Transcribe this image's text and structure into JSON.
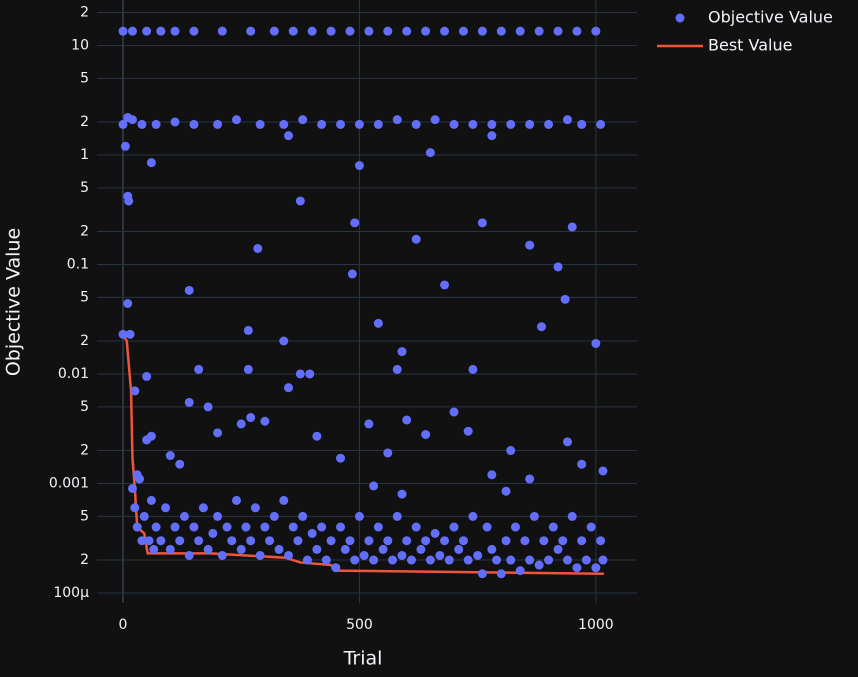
{
  "chart_data": {
    "type": "scatter",
    "x_label": "Trial",
    "y_label": "Objective Value",
    "log_y": true,
    "grid": true,
    "legend": "top-right",
    "xlim": [
      -55,
      1087
    ],
    "ylim": [
      8.1e-05,
      26
    ],
    "xticks": [
      0,
      500,
      1000
    ],
    "yticks": [
      {
        "value": 0.0001,
        "label": "100μ"
      },
      {
        "value": 0.0002,
        "label": "2"
      },
      {
        "value": 0.0005,
        "label": "5"
      },
      0.001,
      {
        "value": 0.002,
        "label": "2"
      },
      {
        "value": 0.005,
        "label": "5"
      },
      0.01,
      {
        "value": 0.02,
        "label": "2"
      },
      {
        "value": 0.05,
        "label": "5"
      },
      0.1,
      {
        "value": 0.2,
        "label": "2"
      },
      {
        "value": 0.5,
        "label": "5"
      },
      1,
      {
        "value": 2,
        "label": "2"
      },
      {
        "value": 5,
        "label": "5"
      },
      10,
      {
        "value": 20,
        "label": "2"
      }
    ],
    "series": [
      {
        "name": "Objective Value",
        "color": "#636efa",
        "mode": "markers",
        "x": [
          0,
          20,
          50,
          80,
          110,
          150,
          210,
          270,
          320,
          360,
          400,
          440,
          480,
          520,
          560,
          600,
          640,
          680,
          720,
          760,
          800,
          840,
          880,
          920,
          960,
          1000,
          0,
          10,
          20,
          40,
          70,
          110,
          150,
          200,
          240,
          290,
          340,
          380,
          420,
          460,
          500,
          540,
          580,
          620,
          660,
          700,
          740,
          780,
          820,
          860,
          900,
          940,
          970,
          1010,
          5,
          10,
          12,
          60,
          350,
          780,
          140,
          285,
          375,
          500,
          490,
          485,
          620,
          650,
          680,
          760,
          860,
          920,
          935,
          950,
          885,
          1000,
          540,
          590,
          340,
          265,
          10,
          15,
          0,
          50,
          160,
          265,
          375,
          395,
          740,
          580,
          25,
          140,
          180,
          270,
          350,
          410,
          30,
          50,
          60,
          100,
          120,
          200,
          250,
          300,
          460,
          520,
          560,
          600,
          640,
          700,
          730,
          780,
          820,
          860,
          940,
          970,
          1015,
          530,
          590,
          810,
          20,
          25,
          30,
          35,
          40,
          45,
          55,
          60,
          65,
          70,
          80,
          90,
          100,
          110,
          120,
          130,
          140,
          150,
          160,
          170,
          180,
          190,
          200,
          210,
          220,
          230,
          240,
          250,
          260,
          270,
          280,
          290,
          300,
          310,
          320,
          330,
          340,
          350,
          360,
          370,
          380,
          390,
          400,
          410,
          420,
          430,
          440,
          450,
          460,
          470,
          480,
          490,
          500,
          510,
          520,
          530,
          540,
          550,
          560,
          570,
          580,
          590,
          600,
          610,
          620,
          630,
          640,
          650,
          660,
          670,
          680,
          690,
          700,
          710,
          720,
          730,
          740,
          750,
          760,
          770,
          780,
          790,
          800,
          810,
          820,
          830,
          840,
          850,
          860,
          870,
          880,
          890,
          900,
          910,
          920,
          930,
          940,
          950,
          960,
          970,
          980,
          990,
          1000,
          1010,
          1015
        ],
        "values": [
          13.5,
          13.5,
          13.5,
          13.5,
          13.5,
          13.5,
          13.5,
          13.5,
          13.5,
          13.5,
          13.5,
          13.5,
          13.5,
          13.5,
          13.5,
          13.5,
          13.5,
          13.5,
          13.5,
          13.5,
          13.5,
          13.5,
          13.5,
          13.5,
          13.5,
          13.5,
          1.9,
          2.2,
          2.1,
          1.9,
          1.9,
          2,
          1.9,
          1.9,
          2.1,
          1.9,
          1.9,
          2.1,
          1.9,
          1.9,
          1.9,
          1.9,
          2.1,
          1.9,
          2.1,
          1.9,
          1.9,
          1.9,
          1.9,
          1.9,
          1.9,
          2.1,
          1.9,
          1.9,
          1.2,
          0.42,
          0.38,
          0.85,
          1.5,
          1.5,
          0.058,
          0.14,
          0.38,
          0.8,
          0.24,
          0.082,
          0.17,
          1.05,
          0.065,
          0.24,
          0.15,
          0.095,
          0.048,
          0.22,
          0.027,
          0.019,
          0.029,
          0.016,
          0.02,
          0.025,
          0.044,
          0.023,
          0.023,
          0.0095,
          0.011,
          0.011,
          0.01,
          0.01,
          0.011,
          0.011,
          0.007,
          0.0055,
          0.005,
          0.004,
          0.0075,
          0.0027,
          0.0012,
          0.0025,
          0.0027,
          0.0018,
          0.0015,
          0.0029,
          0.0035,
          0.0037,
          0.0017,
          0.0035,
          0.0019,
          0.0038,
          0.0028,
          0.0045,
          0.003,
          0.0012,
          0.002,
          0.0011,
          0.0024,
          0.0015,
          0.0013,
          0.00095,
          0.0008,
          0.00085,
          0.0009,
          0.0006,
          0.0004,
          0.0011,
          0.0003,
          0.0005,
          0.0003,
          0.0007,
          0.00025,
          0.0004,
          0.0003,
          0.0006,
          0.00025,
          0.0004,
          0.0003,
          0.0005,
          0.00022,
          0.0004,
          0.0003,
          0.0006,
          0.00025,
          0.00035,
          0.0005,
          0.00022,
          0.0004,
          0.0003,
          0.0007,
          0.00025,
          0.0004,
          0.0003,
          0.0006,
          0.00022,
          0.0004,
          0.0003,
          0.0005,
          0.00025,
          0.0007,
          0.00022,
          0.0004,
          0.0003,
          0.0005,
          0.0002,
          0.00035,
          0.00025,
          0.0004,
          0.0002,
          0.0003,
          0.00017,
          0.0004,
          0.00025,
          0.0003,
          0.0002,
          0.0005,
          0.00022,
          0.0003,
          0.0002,
          0.0004,
          0.00025,
          0.0003,
          0.0002,
          0.0005,
          0.00022,
          0.0003,
          0.0002,
          0.0004,
          0.00025,
          0.0003,
          0.0002,
          0.00035,
          0.00022,
          0.0003,
          0.0002,
          0.0004,
          0.00025,
          0.0003,
          0.0002,
          0.0005,
          0.00022,
          0.00015,
          0.0004,
          0.00025,
          0.0002,
          0.00015,
          0.0003,
          0.0002,
          0.0004,
          0.00016,
          0.0003,
          0.0002,
          0.0005,
          0.00018,
          0.0003,
          0.0002,
          0.0004,
          0.00025,
          0.0003,
          0.0002,
          0.0005,
          0.00017,
          0.0003,
          0.0002,
          0.0004,
          0.00017,
          0.0003,
          0.0002
        ]
      },
      {
        "name": "Best Value",
        "color": "#ef553b",
        "mode": "lines",
        "x": [
          0,
          8,
          17,
          20,
          25,
          30,
          45,
          52,
          185,
          343,
          375,
          440,
          450,
          1017
        ],
        "values": [
          0.023,
          0.02,
          0.007,
          0.0017,
          0.0009,
          0.0004,
          0.00035,
          0.00023,
          0.00023,
          0.00021,
          0.00019,
          0.00018,
          0.00016,
          0.00015
        ]
      }
    ]
  }
}
